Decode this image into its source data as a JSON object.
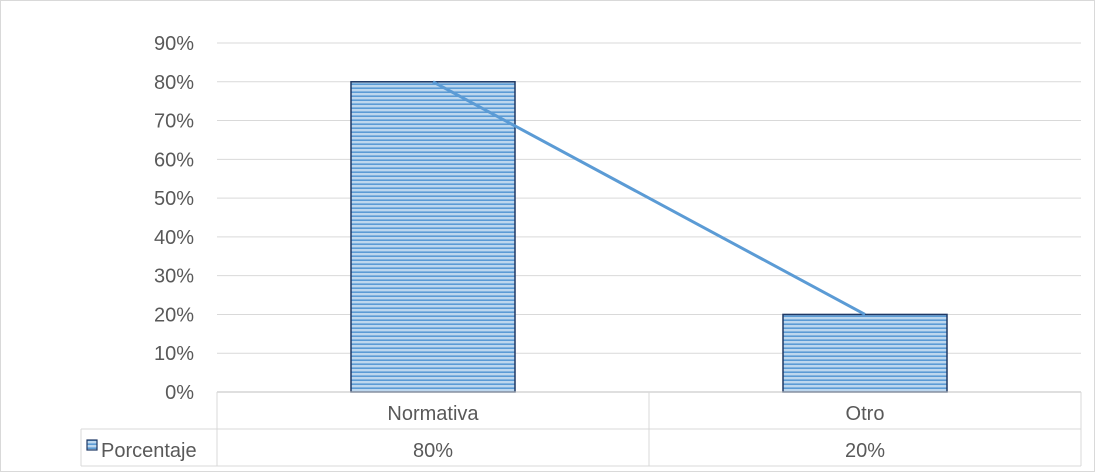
{
  "chart_data": {
    "type": "bar",
    "categories": [
      "Normativa",
      "Otro"
    ],
    "series": [
      {
        "name": "Porcentaje",
        "values": [
          80,
          20
        ],
        "value_labels": [
          "80%",
          "20%"
        ]
      }
    ],
    "trend_line": true,
    "y_ticks": [
      "0%",
      "10%",
      "20%",
      "30%",
      "40%",
      "50%",
      "60%",
      "70%",
      "80%",
      "90%"
    ],
    "ylim": [
      0,
      90
    ],
    "y_step": 10,
    "grid": true,
    "data_table": true,
    "colors": {
      "bar_fill": "#bdd7ee",
      "bar_hatch": "#5b9bd5",
      "bar_border": "#1f3864",
      "trend_line": "#5b9bd5",
      "grid": "#d9d9d9",
      "axis": "#bfbfbf",
      "text": "#595959"
    }
  }
}
